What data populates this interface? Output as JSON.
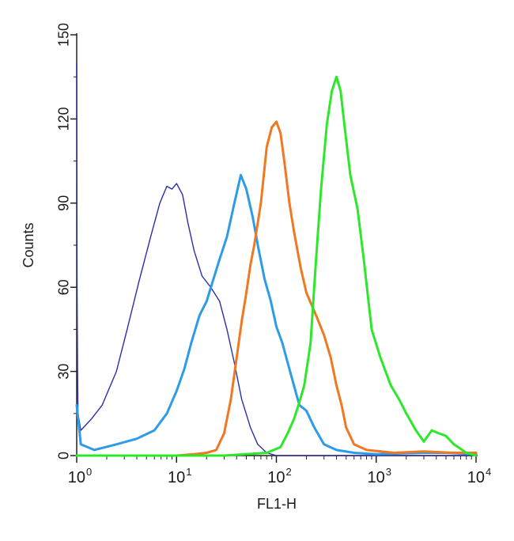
{
  "chart_data": {
    "type": "line",
    "title": "",
    "xlabel": "FL1-H",
    "ylabel": "Counts",
    "x_scale": "log",
    "xlim": [
      1,
      10000
    ],
    "ylim": [
      0,
      150
    ],
    "y_ticks": [
      0,
      30,
      60,
      90,
      120,
      150
    ],
    "x_ticks": [
      {
        "value": 1,
        "base": "10",
        "exp": "0"
      },
      {
        "value": 10,
        "base": "10",
        "exp": "1"
      },
      {
        "value": 100,
        "base": "10",
        "exp": "2"
      },
      {
        "value": 1000,
        "base": "10",
        "exp": "3"
      },
      {
        "value": 10000,
        "base": "10",
        "exp": "4"
      }
    ],
    "grid": false,
    "legend": "none",
    "series": [
      {
        "color": "#2b2fa8",
        "points": [
          [
            1.0,
            140
          ],
          [
            1.01,
            60
          ],
          [
            1.02,
            30
          ],
          [
            1.03,
            15
          ],
          [
            1.1,
            9
          ],
          [
            1.4,
            13
          ],
          [
            1.8,
            18
          ],
          [
            2.5,
            30
          ],
          [
            3.2,
            45
          ],
          [
            4.2,
            62
          ],
          [
            5.5,
            78
          ],
          [
            6.8,
            90
          ],
          [
            8,
            96
          ],
          [
            9,
            95
          ],
          [
            10,
            97
          ],
          [
            11.5,
            93
          ],
          [
            13,
            83
          ],
          [
            15,
            73
          ],
          [
            18,
            64
          ],
          [
            22,
            60
          ],
          [
            27,
            55
          ],
          [
            32,
            45
          ],
          [
            38,
            33
          ],
          [
            45,
            20
          ],
          [
            55,
            10
          ],
          [
            65,
            4
          ],
          [
            80,
            1
          ],
          [
            100,
            0
          ],
          [
            1000,
            0
          ],
          [
            10000,
            0
          ]
        ]
      },
      {
        "color": "#2e9be6",
        "points": [
          [
            1.0,
            18
          ],
          [
            1.1,
            4
          ],
          [
            1.5,
            2
          ],
          [
            2.5,
            4
          ],
          [
            4,
            6
          ],
          [
            6,
            9
          ],
          [
            8,
            15
          ],
          [
            10,
            23
          ],
          [
            12,
            31
          ],
          [
            14,
            40
          ],
          [
            17,
            50
          ],
          [
            20,
            55
          ],
          [
            23,
            62
          ],
          [
            27,
            70
          ],
          [
            32,
            78
          ],
          [
            38,
            90
          ],
          [
            44,
            100
          ],
          [
            50,
            95
          ],
          [
            58,
            85
          ],
          [
            66,
            74
          ],
          [
            76,
            63
          ],
          [
            88,
            55
          ],
          [
            100,
            46
          ],
          [
            115,
            40
          ],
          [
            130,
            33
          ],
          [
            150,
            25
          ],
          [
            170,
            18
          ],
          [
            200,
            16
          ],
          [
            240,
            10
          ],
          [
            300,
            4
          ],
          [
            400,
            2
          ],
          [
            600,
            1
          ],
          [
            1000,
            0.5
          ],
          [
            3000,
            1
          ],
          [
            5000,
            1
          ],
          [
            10000,
            0.5
          ]
        ]
      },
      {
        "color": "#f07820",
        "points": [
          [
            10,
            0
          ],
          [
            15,
            0.5
          ],
          [
            20,
            1
          ],
          [
            25,
            2
          ],
          [
            30,
            8
          ],
          [
            35,
            20
          ],
          [
            40,
            35
          ],
          [
            45,
            48
          ],
          [
            50,
            58
          ],
          [
            55,
            68
          ],
          [
            60,
            75
          ],
          [
            70,
            90
          ],
          [
            80,
            110
          ],
          [
            90,
            117
          ],
          [
            100,
            119
          ],
          [
            110,
            115
          ],
          [
            120,
            105
          ],
          [
            135,
            90
          ],
          [
            150,
            80
          ],
          [
            175,
            67
          ],
          [
            200,
            58
          ],
          [
            250,
            50
          ],
          [
            300,
            43
          ],
          [
            350,
            35
          ],
          [
            400,
            25
          ],
          [
            450,
            18
          ],
          [
            500,
            10
          ],
          [
            600,
            4
          ],
          [
            800,
            2
          ],
          [
            1500,
            1
          ],
          [
            3000,
            1.5
          ],
          [
            6000,
            1
          ],
          [
            10000,
            1
          ]
        ]
      },
      {
        "color": "#2de82a",
        "points": [
          [
            1,
            0
          ],
          [
            30,
            0
          ],
          [
            80,
            1
          ],
          [
            110,
            3
          ],
          [
            130,
            8
          ],
          [
            150,
            13
          ],
          [
            170,
            19
          ],
          [
            190,
            25
          ],
          [
            220,
            40
          ],
          [
            250,
            70
          ],
          [
            280,
            95
          ],
          [
            320,
            118
          ],
          [
            360,
            130
          ],
          [
            400,
            135
          ],
          [
            440,
            130
          ],
          [
            480,
            118
          ],
          [
            550,
            100
          ],
          [
            650,
            88
          ],
          [
            750,
            70
          ],
          [
            900,
            45
          ],
          [
            1100,
            35
          ],
          [
            1400,
            25
          ],
          [
            1700,
            20
          ],
          [
            2000,
            15
          ],
          [
            2500,
            9
          ],
          [
            3000,
            5
          ],
          [
            3600,
            9
          ],
          [
            4200,
            8
          ],
          [
            5000,
            7
          ],
          [
            6000,
            4
          ],
          [
            8000,
            1
          ],
          [
            10000,
            0
          ]
        ]
      }
    ]
  }
}
